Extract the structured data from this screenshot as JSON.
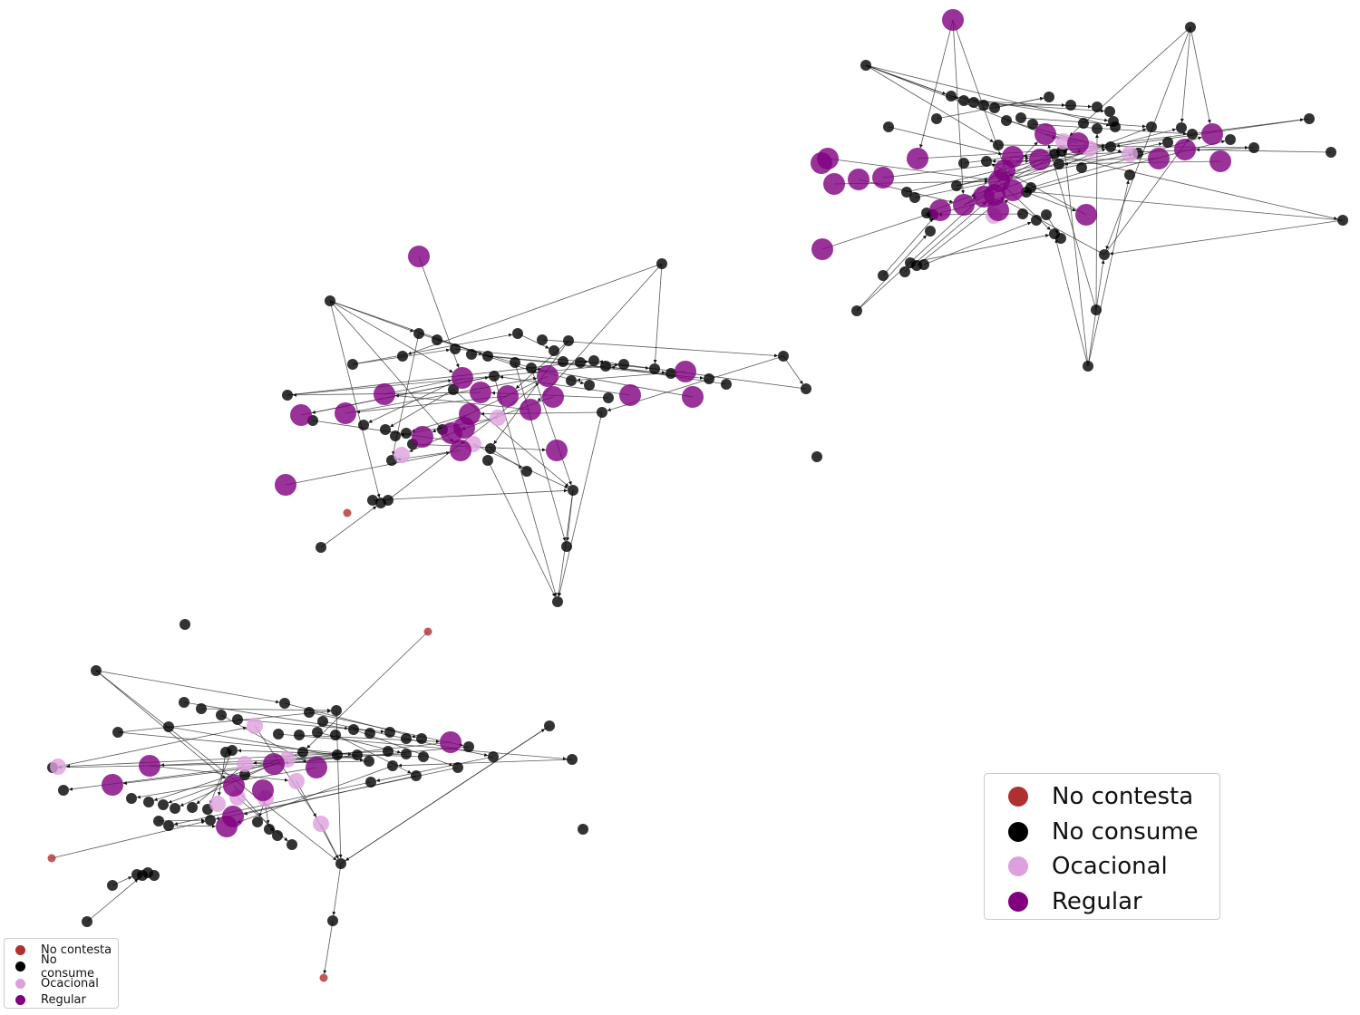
{
  "colors": {
    "no_contesta": "#b03030",
    "no_consume": "#000000",
    "ocacional": "#dda0dd",
    "regular": "#800080",
    "edge": "#222222"
  },
  "legend": {
    "items": [
      {
        "key": "no_contesta",
        "label": "No contesta"
      },
      {
        "key": "no_consume",
        "label": "No consume"
      },
      {
        "key": "ocacional",
        "label": "Ocacional"
      },
      {
        "key": "regular",
        "label": "Regular"
      }
    ]
  },
  "graph": {
    "type": "directed-network",
    "components": 3,
    "node_categories": [
      "No contesta",
      "No consume",
      "Ocacional",
      "Regular"
    ]
  }
}
